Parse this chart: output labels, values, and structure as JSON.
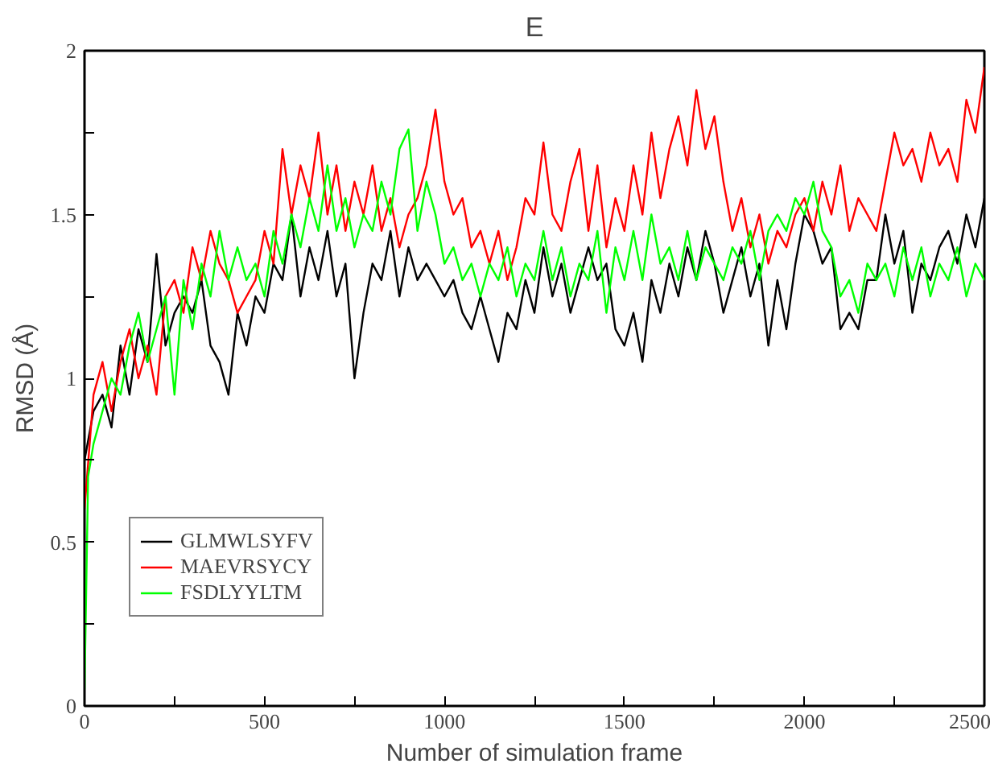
{
  "chart_data": {
    "type": "line",
    "title": "E",
    "xlabel": "Number of simulation frame",
    "ylabel": "RMSD (Å)",
    "x": [
      0,
      25,
      50,
      75,
      100,
      125,
      150,
      175,
      200,
      225,
      250,
      275,
      300,
      325,
      350,
      375,
      400,
      425,
      450,
      475,
      500,
      525,
      550,
      575,
      600,
      625,
      650,
      675,
      700,
      725,
      750,
      775,
      800,
      825,
      850,
      875,
      900,
      925,
      950,
      975,
      1000,
      1025,
      1050,
      1075,
      1100,
      1125,
      1150,
      1175,
      1200,
      1225,
      1250,
      1275,
      1300,
      1325,
      1350,
      1375,
      1400,
      1425,
      1450,
      1475,
      1500,
      1525,
      1550,
      1575,
      1600,
      1625,
      1650,
      1675,
      1700,
      1725,
      1750,
      1775,
      1800,
      1825,
      1850,
      1875,
      1900,
      1925,
      1950,
      1975,
      2000,
      2025,
      2050,
      2075,
      2100,
      2125,
      2150,
      2175,
      2200,
      2225,
      2250,
      2275,
      2300,
      2325,
      2350,
      2375,
      2400,
      2425,
      2450,
      2475,
      2500
    ],
    "series": [
      {
        "name": "GLMWLSYFV",
        "color": "#000000",
        "values": [
          0.75,
          0.9,
          0.95,
          0.85,
          1.1,
          0.95,
          1.15,
          1.05,
          1.38,
          1.1,
          1.2,
          1.25,
          1.2,
          1.3,
          1.1,
          1.05,
          0.95,
          1.2,
          1.1,
          1.25,
          1.2,
          1.35,
          1.3,
          1.5,
          1.25,
          1.4,
          1.3,
          1.45,
          1.25,
          1.35,
          1.0,
          1.2,
          1.35,
          1.3,
          1.45,
          1.25,
          1.4,
          1.3,
          1.35,
          1.3,
          1.25,
          1.3,
          1.2,
          1.15,
          1.25,
          1.15,
          1.05,
          1.2,
          1.15,
          1.3,
          1.2,
          1.4,
          1.25,
          1.35,
          1.2,
          1.3,
          1.4,
          1.3,
          1.35,
          1.15,
          1.1,
          1.2,
          1.05,
          1.3,
          1.2,
          1.35,
          1.25,
          1.4,
          1.3,
          1.45,
          1.35,
          1.2,
          1.3,
          1.4,
          1.25,
          1.35,
          1.1,
          1.3,
          1.15,
          1.35,
          1.5,
          1.45,
          1.35,
          1.4,
          1.15,
          1.2,
          1.15,
          1.3,
          1.3,
          1.5,
          1.35,
          1.45,
          1.2,
          1.35,
          1.3,
          1.4,
          1.45,
          1.35,
          1.5,
          1.4,
          1.55
        ]
      },
      {
        "name": "MAEVRSYCY",
        "color": "#ff0000",
        "values": [
          0.6,
          0.95,
          1.05,
          0.9,
          1.05,
          1.15,
          1.0,
          1.1,
          0.95,
          1.25,
          1.3,
          1.2,
          1.4,
          1.3,
          1.45,
          1.35,
          1.3,
          1.2,
          1.25,
          1.3,
          1.45,
          1.35,
          1.7,
          1.5,
          1.65,
          1.55,
          1.75,
          1.5,
          1.65,
          1.45,
          1.6,
          1.5,
          1.65,
          1.45,
          1.55,
          1.4,
          1.5,
          1.55,
          1.65,
          1.82,
          1.6,
          1.5,
          1.55,
          1.4,
          1.45,
          1.35,
          1.45,
          1.3,
          1.4,
          1.55,
          1.5,
          1.72,
          1.5,
          1.45,
          1.6,
          1.7,
          1.45,
          1.65,
          1.4,
          1.55,
          1.45,
          1.65,
          1.5,
          1.75,
          1.55,
          1.7,
          1.8,
          1.65,
          1.88,
          1.7,
          1.8,
          1.6,
          1.45,
          1.55,
          1.4,
          1.5,
          1.35,
          1.45,
          1.4,
          1.5,
          1.55,
          1.45,
          1.6,
          1.5,
          1.65,
          1.45,
          1.55,
          1.5,
          1.45,
          1.6,
          1.75,
          1.65,
          1.7,
          1.6,
          1.75,
          1.65,
          1.7,
          1.6,
          1.85,
          1.75,
          1.95
        ]
      },
      {
        "name": "FSDLYYLTM",
        "color": "#00ff00",
        "x": [
          0,
          10,
          25,
          50,
          75,
          100,
          125,
          150,
          175,
          200,
          225,
          250,
          275,
          300,
          325,
          350,
          375,
          400,
          425,
          450,
          475,
          500,
          525,
          550,
          575,
          600,
          625,
          650,
          675,
          700,
          725,
          750,
          775,
          800,
          825,
          850,
          875,
          900,
          925,
          950,
          975,
          1000,
          1025,
          1050,
          1075,
          1100,
          1125,
          1150,
          1175,
          1200,
          1225,
          1250,
          1275,
          1300,
          1325,
          1350,
          1375,
          1400,
          1425,
          1450,
          1475,
          1500,
          1525,
          1550,
          1575,
          1600,
          1625,
          1650,
          1675,
          1700,
          1725,
          1750,
          1775,
          1800,
          1825,
          1850,
          1875,
          1900,
          1925,
          1950,
          1975,
          2000,
          2025,
          2050,
          2075,
          2100,
          2125,
          2150,
          2175,
          2200,
          2225,
          2250,
          2275,
          2300,
          2325,
          2350,
          2375,
          2400,
          2425,
          2450,
          2475,
          2500
        ],
        "values": [
          0.05,
          0.7,
          0.8,
          0.9,
          1.0,
          0.95,
          1.1,
          1.2,
          1.05,
          1.15,
          1.25,
          0.95,
          1.3,
          1.15,
          1.35,
          1.25,
          1.45,
          1.3,
          1.4,
          1.3,
          1.35,
          1.25,
          1.45,
          1.35,
          1.5,
          1.4,
          1.55,
          1.45,
          1.65,
          1.45,
          1.55,
          1.4,
          1.5,
          1.45,
          1.6,
          1.5,
          1.7,
          1.76,
          1.45,
          1.6,
          1.5,
          1.35,
          1.4,
          1.3,
          1.35,
          1.25,
          1.35,
          1.3,
          1.4,
          1.25,
          1.35,
          1.3,
          1.45,
          1.3,
          1.4,
          1.25,
          1.35,
          1.3,
          1.45,
          1.2,
          1.4,
          1.3,
          1.45,
          1.3,
          1.5,
          1.35,
          1.4,
          1.3,
          1.45,
          1.3,
          1.4,
          1.35,
          1.3,
          1.4,
          1.35,
          1.45,
          1.3,
          1.45,
          1.5,
          1.45,
          1.55,
          1.5,
          1.6,
          1.45,
          1.4,
          1.25,
          1.3,
          1.2,
          1.35,
          1.3,
          1.35,
          1.25,
          1.4,
          1.3,
          1.4,
          1.25,
          1.35,
          1.3,
          1.4,
          1.25,
          1.35,
          1.3
        ]
      }
    ],
    "xlim": [
      0,
      2500
    ],
    "ylim": [
      0,
      2
    ],
    "xticks": [
      0,
      {
        "value": 250,
        "label": null
      },
      500,
      {
        "value": 750,
        "label": null
      },
      1000,
      {
        "value": 1250,
        "label": null
      },
      1500,
      {
        "value": 1750,
        "label": null
      },
      2000,
      {
        "value": 2250,
        "label": null
      },
      2500
    ],
    "yticks": [
      0,
      {
        "value": 0.25,
        "label": null
      },
      0.5,
      {
        "value": 0.75,
        "label": null
      },
      1,
      {
        "value": 1.25,
        "label": null
      },
      1.5,
      {
        "value": 1.75,
        "label": null
      },
      2
    ],
    "grid": false,
    "legend": "bottom left",
    "marker": "none",
    "line_style": "solid"
  }
}
